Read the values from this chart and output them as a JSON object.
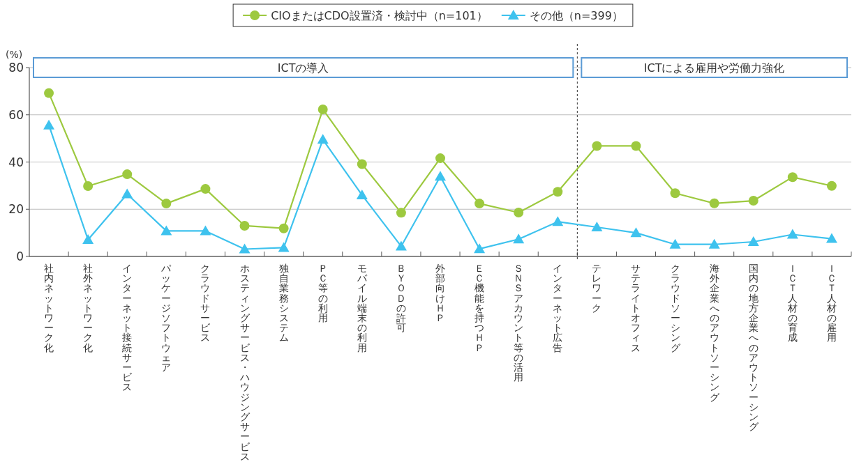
{
  "chart_data": {
    "type": "line",
    "categories": [
      "社内ネットワーク化",
      "社外ネットワーク化",
      "インターネット接続サービス",
      "パッケージソフトウェア",
      "クラウドサービス",
      "ホスティングサービス・ハウジングサービス",
      "独自業務システム",
      "ＰＣ等の利用",
      "モバイル端末の利用",
      "ＢＹＯＤの許可",
      "外部向けＨＰ",
      "ＥＣ機能を持つＨＰ",
      "ＳＮＳアカウント等の活用",
      "インターネット広告",
      "テレワーク",
      "サテライトオフィス",
      "クラウドソーシング",
      "海外企業へのアウトソーシング",
      "国内の地方企業へのアウトソーシング",
      "ＩＣＴ人材の育成",
      "ＩＣＴ人材の雇用"
    ],
    "series": [
      {
        "name": "CIOまたはCDO設置済・検討中（n=101）",
        "color": "#9dc93f",
        "marker": "circle",
        "values": [
          69.2,
          29.8,
          34.8,
          22.4,
          28.6,
          13.0,
          11.9,
          62.3,
          39.1,
          18.5,
          41.6,
          22.4,
          18.6,
          27.4,
          46.8,
          46.8,
          26.8,
          22.5,
          23.6,
          33.6,
          29.9
        ]
      },
      {
        "name": "その他（n=399）",
        "color": "#3ec2ee",
        "marker": "triangle",
        "values": [
          55.6,
          7.1,
          26.4,
          10.8,
          10.8,
          3.1,
          3.7,
          49.5,
          26.0,
          4.3,
          33.9,
          3.2,
          7.3,
          14.7,
          12.4,
          10.0,
          5.1,
          5.1,
          6.2,
          9.3,
          7.5
        ]
      }
    ],
    "ylabel": "(%)",
    "ylim": [
      0,
      80
    ],
    "yticks": [
      0,
      20,
      40,
      60,
      80
    ],
    "grid": "y",
    "legend": "top",
    "bands": [
      {
        "axis": "x",
        "from": "社内ネットワーク化",
        "to": "インターネット広告",
        "label": "ICTの導入",
        "color": "#5b9bd5"
      },
      {
        "axis": "x",
        "from": "テレワーク",
        "to": "ＩＣＴ人材の雇用",
        "label": "ICTによる雇用や労働力強化",
        "color": "#5b9bd5"
      }
    ],
    "ref_lines": [
      {
        "axis": "x",
        "value": "テレワーク",
        "color": "#333333",
        "line_style": "dashed"
      }
    ]
  }
}
